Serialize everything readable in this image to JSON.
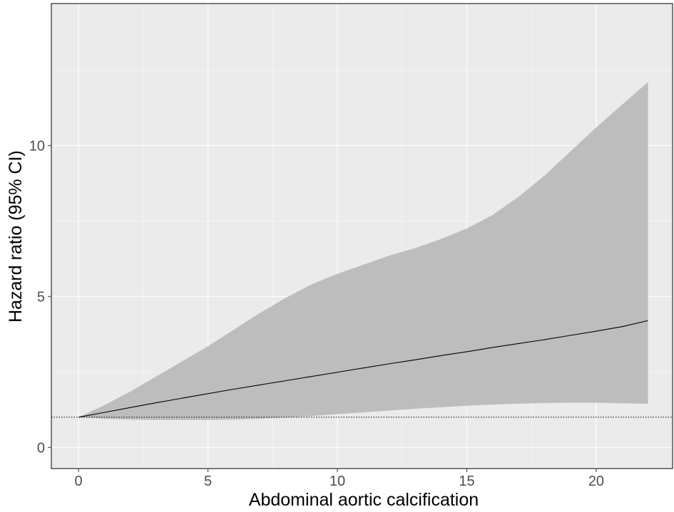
{
  "chart_data": {
    "type": "line",
    "xlabel": "Abdominal aortic calcification",
    "ylabel": "Hazard ratio (95% CI)",
    "xlim": [
      -1.05,
      22.95
    ],
    "ylim": [
      -0.7,
      14.7
    ],
    "x_ticks": [
      0,
      5,
      10,
      15,
      20
    ],
    "y_ticks": [
      0,
      5,
      10
    ],
    "reference_line": {
      "y": 1,
      "style": "dotted"
    },
    "grid": true,
    "legend": "none",
    "colors": {
      "panel_background": "#ebebeb",
      "grid_major": "#ffffff",
      "ribbon": "#bdbdbd",
      "line": "#000000",
      "tick_label": "#4d4d4d"
    },
    "series": [
      {
        "x": [
          0,
          1,
          2,
          3,
          4,
          5,
          6,
          7,
          8,
          9,
          10,
          11,
          12,
          13,
          14,
          15,
          16,
          17,
          18,
          19,
          20,
          21,
          22
        ],
        "values": [
          1.0,
          1.16,
          1.32,
          1.48,
          1.63,
          1.78,
          1.93,
          2.07,
          2.21,
          2.35,
          2.49,
          2.63,
          2.77,
          2.9,
          3.04,
          3.17,
          3.31,
          3.44,
          3.57,
          3.71,
          3.85,
          4.0,
          4.2
        ],
        "lower": [
          1.0,
          0.95,
          0.92,
          0.91,
          0.91,
          0.91,
          0.92,
          0.95,
          0.99,
          1.04,
          1.1,
          1.16,
          1.22,
          1.28,
          1.33,
          1.38,
          1.42,
          1.45,
          1.47,
          1.48,
          1.48,
          1.46,
          1.45
        ],
        "upper": [
          1.0,
          1.4,
          1.85,
          2.35,
          2.85,
          3.35,
          3.9,
          4.45,
          4.95,
          5.4,
          5.75,
          6.05,
          6.35,
          6.6,
          6.9,
          7.25,
          7.7,
          8.3,
          9.0,
          9.8,
          10.6,
          11.35,
          12.1
        ]
      }
    ]
  }
}
